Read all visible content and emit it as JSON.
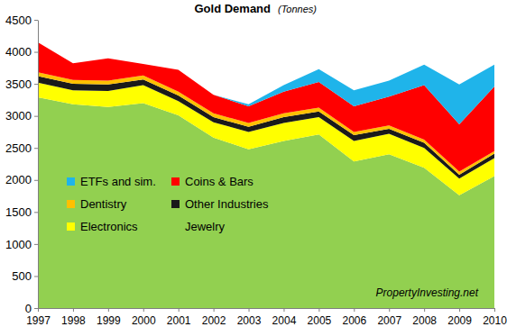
{
  "chart_data": {
    "type": "area",
    "title": "Gold Demand",
    "subtitle": "(Tonnes)",
    "annotation": "PropertyInvesting.net",
    "stacked": true,
    "x": [
      1997,
      1998,
      1999,
      2000,
      2001,
      2002,
      2003,
      2004,
      2005,
      2006,
      2007,
      2008,
      2009,
      2010
    ],
    "xlim": [
      1997,
      2010
    ],
    "xticks": [
      1997,
      1998,
      1999,
      2000,
      2001,
      2002,
      2003,
      2004,
      2005,
      2006,
      2007,
      2008,
      2009,
      2010
    ],
    "ylim": [
      0,
      4500
    ],
    "yticks": [
      0,
      500,
      1000,
      1500,
      2000,
      2500,
      3000,
      3500,
      4000,
      4500
    ],
    "series": [
      {
        "name": "Jewelry",
        "color": "#92d050",
        "values": [
          3290,
          3180,
          3140,
          3200,
          3010,
          2660,
          2480,
          2610,
          2710,
          2290,
          2400,
          2190,
          1760,
          2060
        ]
      },
      {
        "name": "Electronics",
        "color": "#ffff00",
        "values": [
          230,
          220,
          250,
          280,
          220,
          240,
          270,
          280,
          270,
          320,
          320,
          310,
          260,
          280
        ]
      },
      {
        "name": "Other Industries",
        "color": "#1a1a1a",
        "values": [
          100,
          100,
          100,
          90,
          90,
          80,
          80,
          90,
          90,
          90,
          80,
          80,
          60,
          70
        ]
      },
      {
        "name": "Dentistry",
        "color": "#ffc000",
        "values": [
          60,
          60,
          60,
          60,
          60,
          60,
          60,
          60,
          60,
          50,
          50,
          50,
          50,
          40
        ]
      },
      {
        "name": "Coins & Bars",
        "color": "#ff0000",
        "values": [
          470,
          260,
          350,
          180,
          340,
          290,
          260,
          340,
          400,
          400,
          450,
          850,
          740,
          1010
        ]
      },
      {
        "name": "ETFs and sim.",
        "color": "#1fb4ea",
        "values": [
          0,
          0,
          0,
          0,
          0,
          0,
          30,
          100,
          200,
          250,
          250,
          320,
          620,
          340
        ]
      }
    ]
  }
}
